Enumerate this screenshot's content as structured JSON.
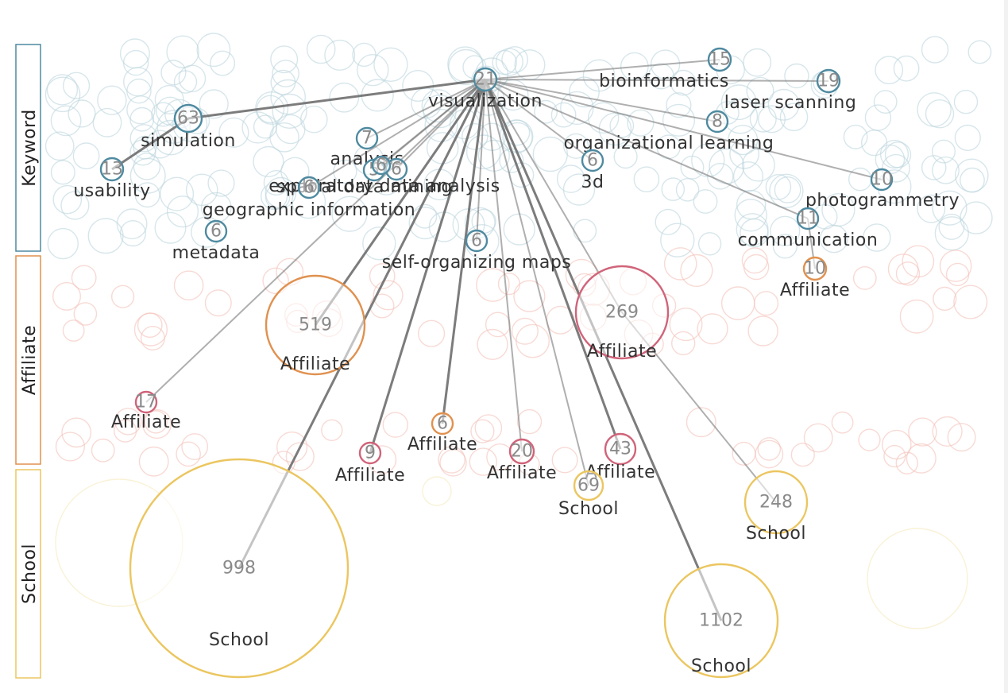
{
  "colors": {
    "keyword": "#4f8aa0",
    "affiliate_orange": "#e0914f",
    "affiliate_pink": "#d0647a",
    "school": "#ebc660",
    "edge": "#6e6e6e",
    "bg_keyword": "#bcd5dd",
    "bg_affiliate": "#f3c1b9",
    "bg_school": "#f1e2a7"
  },
  "bands": [
    {
      "id": "keyword",
      "label": "Keyword"
    },
    {
      "id": "affiliate",
      "label": "Affiliate"
    },
    {
      "id": "school",
      "label": "School"
    }
  ],
  "nodes": [
    {
      "id": "n21",
      "count": "21",
      "label": "visualization",
      "type": "keyword"
    },
    {
      "id": "n15",
      "count": "15",
      "label": "bioinformatics",
      "type": "keyword"
    },
    {
      "id": "n19",
      "count": "19",
      "label": "laser scanning",
      "type": "keyword"
    },
    {
      "id": "n63",
      "count": "63",
      "label": "simulation",
      "type": "keyword"
    },
    {
      "id": "n8",
      "count": "8",
      "label": "organizational learning",
      "type": "keyword"
    },
    {
      "id": "n13",
      "count": "13",
      "label": "usability",
      "type": "keyword"
    },
    {
      "id": "n7",
      "count": "7",
      "label": "analysis",
      "type": "keyword"
    },
    {
      "id": "n5",
      "count": "5",
      "label": "spatial data mining",
      "type": "keyword"
    },
    {
      "id": "n6a",
      "count": "6",
      "label": "exploratory data analysis",
      "type": "keyword"
    },
    {
      "id": "n6b",
      "count": "6",
      "label": "geographic information",
      "type": "keyword"
    },
    {
      "id": "n6c",
      "count": "6",
      "label": "",
      "type": "keyword"
    },
    {
      "id": "n6d",
      "count": "6",
      "label": "3d",
      "type": "keyword"
    },
    {
      "id": "n10a",
      "count": "10",
      "label": "photogrammetry",
      "type": "keyword"
    },
    {
      "id": "n11",
      "count": "11",
      "label": "communication",
      "type": "keyword"
    },
    {
      "id": "n6e",
      "count": "6",
      "label": "metadata",
      "type": "keyword"
    },
    {
      "id": "n6f",
      "count": "6",
      "label": "self-organizing maps",
      "type": "keyword"
    },
    {
      "id": "n10b",
      "count": "10",
      "label": "Affiliate",
      "type": "affiliate_orange"
    },
    {
      "id": "n519",
      "count": "519",
      "label": "Affiliate",
      "type": "affiliate_orange"
    },
    {
      "id": "n269",
      "count": "269",
      "label": "Affiliate",
      "type": "affiliate_pink"
    },
    {
      "id": "n17",
      "count": "17",
      "label": "Affiliate",
      "type": "affiliate_pink"
    },
    {
      "id": "n6g",
      "count": "6",
      "label": "Affiliate",
      "type": "affiliate_orange"
    },
    {
      "id": "n9",
      "count": "9",
      "label": "Affiliate",
      "type": "affiliate_pink"
    },
    {
      "id": "n20",
      "count": "20",
      "label": "Affiliate",
      "type": "affiliate_pink"
    },
    {
      "id": "n43",
      "count": "43",
      "label": "Affiliate",
      "type": "affiliate_pink"
    },
    {
      "id": "n69",
      "count": "69",
      "label": "School",
      "type": "school"
    },
    {
      "id": "n248",
      "count": "248",
      "label": "School",
      "type": "school"
    },
    {
      "id": "n998",
      "count": "998",
      "label": "School",
      "type": "school"
    },
    {
      "id": "n1102",
      "count": "1102",
      "label": "School",
      "type": "school"
    }
  ],
  "edges": [
    [
      "n21",
      "n15"
    ],
    [
      "n21",
      "n19"
    ],
    [
      "n21",
      "n63"
    ],
    [
      "n21",
      "n8"
    ],
    [
      "n21",
      "n7"
    ],
    [
      "n21",
      "n5"
    ],
    [
      "n21",
      "n6a"
    ],
    [
      "n21",
      "n6b"
    ],
    [
      "n21",
      "n6c"
    ],
    [
      "n21",
      "n6d"
    ],
    [
      "n21",
      "n10a"
    ],
    [
      "n21",
      "n11"
    ],
    [
      "n21",
      "n6f"
    ],
    [
      "n21",
      "n519"
    ],
    [
      "n21",
      "n269"
    ],
    [
      "n21",
      "n17"
    ],
    [
      "n21",
      "n6g"
    ],
    [
      "n21",
      "n9"
    ],
    [
      "n21",
      "n20"
    ],
    [
      "n21",
      "n43"
    ],
    [
      "n21",
      "n69"
    ],
    [
      "n21",
      "n998"
    ],
    [
      "n21",
      "n1102"
    ],
    [
      "n63",
      "n13"
    ],
    [
      "n269",
      "n248"
    ],
    [
      "n11",
      "n10b"
    ]
  ]
}
